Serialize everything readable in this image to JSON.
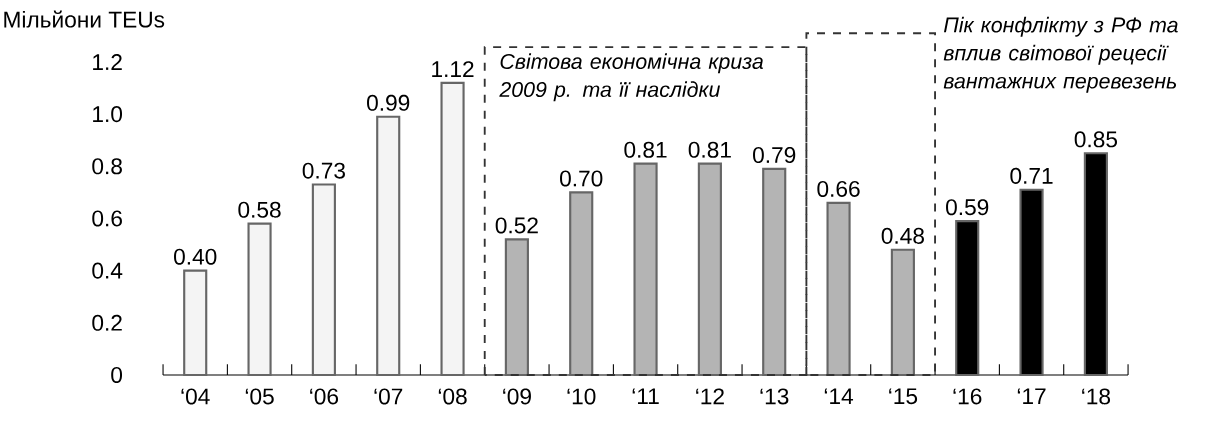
{
  "chart_data": {
    "type": "bar",
    "ylabel": "Мільйони TEUs",
    "categories": [
      "‘04",
      "‘05",
      "‘06",
      "‘07",
      "‘08",
      "‘09",
      "‘10",
      "‘11",
      "‘12",
      "‘13",
      "‘14",
      "‘15",
      "‘16",
      "‘17",
      "‘18"
    ],
    "values": [
      0.4,
      0.58,
      0.73,
      0.99,
      1.12,
      0.52,
      0.7,
      0.81,
      0.81,
      0.79,
      0.66,
      0.48,
      0.59,
      0.71,
      0.85
    ],
    "value_labels": [
      "0.40",
      "0.58",
      "0.73",
      "0.99",
      "1.12",
      "0.52",
      "0.70",
      "0.81",
      "0.81",
      "0.79",
      "0.66",
      "0.48",
      "0.59",
      "0.71",
      "0.85"
    ],
    "colors": [
      "#f4f4f4",
      "#f4f4f4",
      "#f4f4f4",
      "#f4f4f4",
      "#f4f4f4",
      "#b4b4b4",
      "#b4b4b4",
      "#b4b4b4",
      "#b4b4b4",
      "#b4b4b4",
      "#b4b4b4",
      "#b4b4b4",
      "#000000",
      "#000000",
      "#000000"
    ],
    "ylim": [
      0,
      1.2
    ],
    "yticks": [
      0,
      {
        "value": 0.2,
        "label": "0.2"
      },
      {
        "value": 0.4,
        "label": "0.4"
      },
      {
        "value": 0.6,
        "label": "0.6"
      },
      {
        "value": 0.8,
        "label": "0.8"
      },
      {
        "value": 1.0,
        "label": "1.0"
      },
      {
        "value": 1.2,
        "label": "1.2"
      }
    ],
    "annotations": [
      "Світова економічна криза 2009 р. та її наслідки",
      "Пік конфлікту з РФ та вплив світової рецесії вантажних перевезень"
    ]
  }
}
